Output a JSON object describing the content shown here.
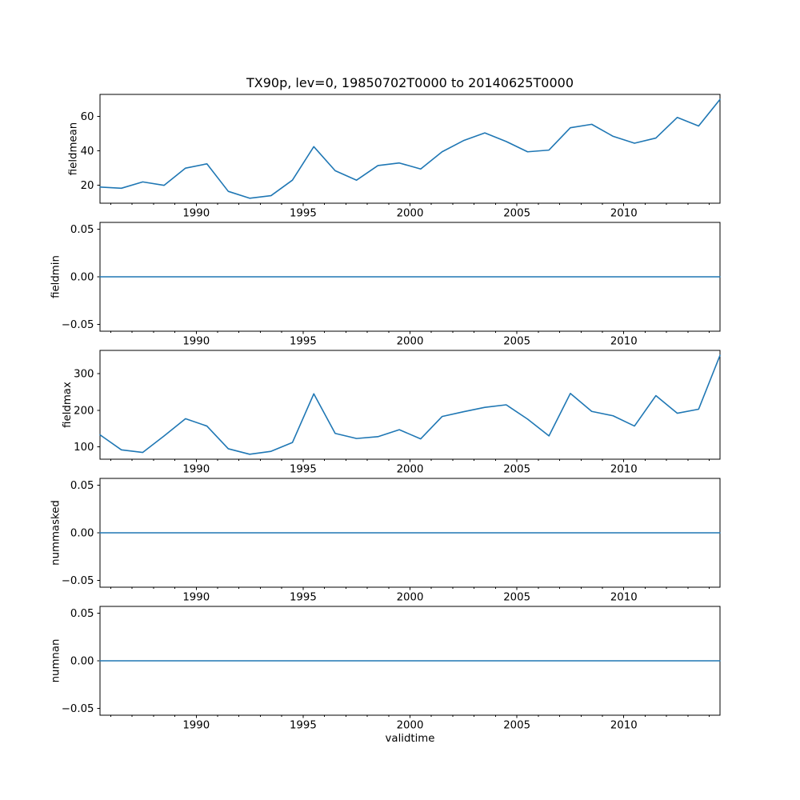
{
  "figure": {
    "title": "TX90p, lev=0, 19850702T0000 to 20140625T0000",
    "xlabel": "validtime",
    "line_color": "#1f77b4",
    "axis_color": "#000000",
    "background_color": "#ffffff",
    "xlim": [
      1985.5,
      2014.5
    ],
    "x": [
      1985.5,
      1986.5,
      1987.5,
      1988.5,
      1989.5,
      1990.5,
      1991.5,
      1992.5,
      1993.5,
      1994.5,
      1995.5,
      1996.5,
      1997.5,
      1998.5,
      1999.5,
      2000.5,
      2001.5,
      2002.5,
      2003.5,
      2004.5,
      2005.5,
      2006.5,
      2007.5,
      2008.5,
      2009.5,
      2010.5,
      2011.5,
      2012.5,
      2013.5,
      2014.5
    ],
    "x_major_ticks": [
      1990,
      1995,
      2000,
      2005,
      2010
    ],
    "x_major_tick_labels": [
      "1990",
      "1995",
      "2000",
      "2005",
      "2010"
    ],
    "x_minor_tick_from": 1986,
    "x_minor_tick_to": 2014,
    "x_minor_tick_step": 1,
    "grid": "off",
    "legend": "none"
  },
  "chart_data": [
    {
      "type": "line",
      "ylabel": "fieldmean",
      "values": [
        19,
        18.3,
        22,
        20,
        30,
        32.5,
        16.5,
        12.5,
        14,
        23,
        42.5,
        28.5,
        23,
        31.5,
        33,
        29.5,
        39.5,
        46,
        50.5,
        45.5,
        39.5,
        40.5,
        53.5,
        55.5,
        48.5,
        44.5,
        47.5,
        59.5,
        54.5,
        70
      ],
      "yticks": [
        20,
        40,
        60
      ],
      "ytick_labels": [
        "20",
        "40",
        "60"
      ],
      "ylim": [
        9.6,
        72.9
      ]
    },
    {
      "type": "line",
      "ylabel": "fieldmin",
      "values": [
        0,
        0,
        0,
        0,
        0,
        0,
        0,
        0,
        0,
        0,
        0,
        0,
        0,
        0,
        0,
        0,
        0,
        0,
        0,
        0,
        0,
        0,
        0,
        0,
        0,
        0,
        0,
        0,
        0,
        0
      ],
      "yticks": [
        0.05,
        0.0,
        -0.05
      ],
      "ytick_labels": [
        "0.05",
        "0.00",
        "−0.05"
      ],
      "ylim": [
        -0.057,
        0.057
      ]
    },
    {
      "type": "line",
      "ylabel": "fieldmax",
      "values": [
        133,
        92,
        85,
        130,
        177,
        157,
        95,
        80,
        88,
        112,
        245,
        137,
        123,
        128,
        147,
        122,
        183,
        196,
        208,
        215,
        176,
        130,
        246,
        197,
        185,
        157,
        240,
        192,
        203,
        350
      ],
      "yticks": [
        100,
        200,
        300
      ],
      "ytick_labels": [
        "100",
        "200",
        "300"
      ],
      "ylim": [
        66.5,
        363.5
      ]
    },
    {
      "type": "line",
      "ylabel": "nummasked",
      "values": [
        0,
        0,
        0,
        0,
        0,
        0,
        0,
        0,
        0,
        0,
        0,
        0,
        0,
        0,
        0,
        0,
        0,
        0,
        0,
        0,
        0,
        0,
        0,
        0,
        0,
        0,
        0,
        0,
        0,
        0
      ],
      "yticks": [
        0.05,
        0.0,
        -0.05
      ],
      "ytick_labels": [
        "0.05",
        "0.00",
        "−0.05"
      ],
      "ylim": [
        -0.057,
        0.057
      ]
    },
    {
      "type": "line",
      "ylabel": "numnan",
      "values": [
        0,
        0,
        0,
        0,
        0,
        0,
        0,
        0,
        0,
        0,
        0,
        0,
        0,
        0,
        0,
        0,
        0,
        0,
        0,
        0,
        0,
        0,
        0,
        0,
        0,
        0,
        0,
        0,
        0,
        0
      ],
      "yticks": [
        0.05,
        0.0,
        -0.05
      ],
      "ytick_labels": [
        "0.05",
        "0.00",
        "−0.05"
      ],
      "ylim": [
        -0.057,
        0.057
      ]
    }
  ]
}
